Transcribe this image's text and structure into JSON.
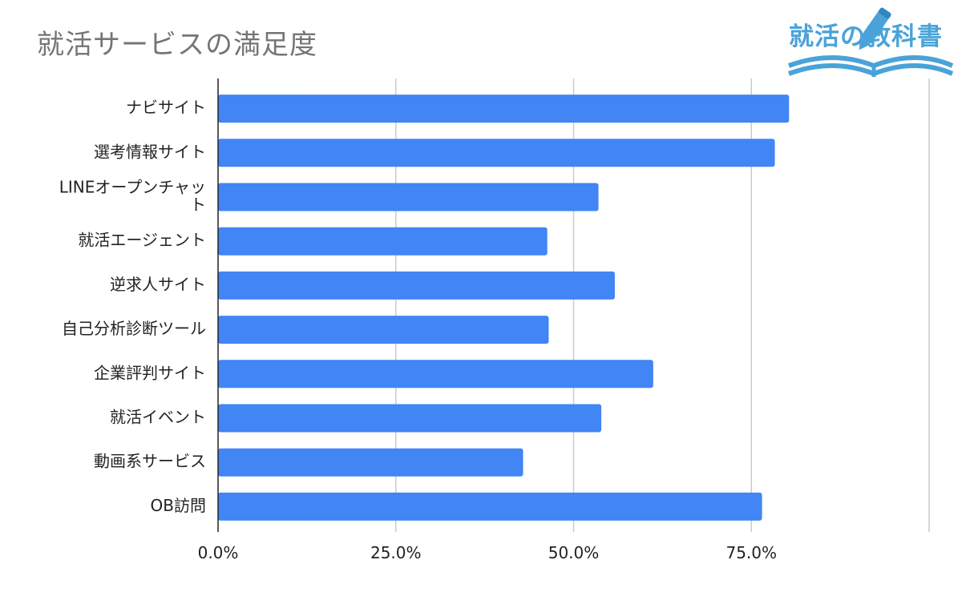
{
  "title": "就活サービスの満足度",
  "logo": {
    "text": "就活の教科書",
    "color": "#4aa3d8"
  },
  "chart_data": {
    "type": "bar",
    "orientation": "horizontal",
    "title": "就活サービスの満足度",
    "xlabel": "",
    "ylabel": "",
    "categories": [
      [
        "ナビサイト"
      ],
      [
        "選考情報サイト"
      ],
      [
        "LINEオープンチャッ",
        "ト"
      ],
      [
        "就活エージェント"
      ],
      [
        "逆求人サイト"
      ],
      [
        "自己分析診断ツール"
      ],
      [
        "企業評判サイト"
      ],
      [
        "就活イベント"
      ],
      [
        "動画系サービス"
      ],
      [
        "OB訪問"
      ]
    ],
    "values": [
      80.3,
      78.3,
      53.5,
      46.3,
      55.8,
      46.5,
      61.2,
      53.9,
      42.9,
      76.5
    ],
    "xlim": [
      0,
      100
    ],
    "xticks": [
      0,
      25,
      50,
      75,
      100
    ],
    "xtick_labels": [
      "0.0%",
      "25.0%",
      "50.0%",
      "75.0%",
      ""
    ],
    "grid": true,
    "legend": "none",
    "bar_color": "#4285f4",
    "grid_color": "#cccccc",
    "axis_color": "#222222"
  }
}
